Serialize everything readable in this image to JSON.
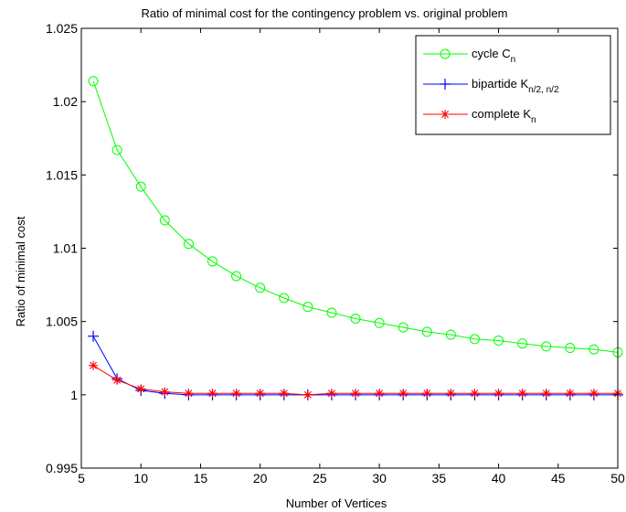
{
  "chart_data": {
    "type": "line",
    "title": "Ratio of minimal cost for the contingency problem vs. original problem",
    "xlabel": "Number of Vertices",
    "ylabel": "Ratio of minimal cost",
    "xlim": [
      5,
      50
    ],
    "ylim": [
      0.995,
      1.025
    ],
    "xticks": [
      5,
      10,
      15,
      20,
      25,
      30,
      35,
      40,
      45,
      50
    ],
    "yticks": [
      0.995,
      1,
      1.005,
      1.01,
      1.015,
      1.02,
      1.025
    ],
    "xtick_labels": [
      "5",
      "10",
      "15",
      "20",
      "25",
      "30",
      "35",
      "40",
      "45",
      "50"
    ],
    "ytick_labels": [
      "0.995",
      "1",
      "1.005",
      "1.01",
      "1.015",
      "1.02",
      "1.025"
    ],
    "grid": false,
    "legend_position": "top-right",
    "series": [
      {
        "name": "cycle C",
        "name_sub": "n",
        "color": "#00ff00",
        "marker": "circle",
        "x": [
          6,
          8,
          10,
          12,
          14,
          16,
          18,
          20,
          22,
          24,
          26,
          28,
          30,
          32,
          34,
          36,
          38,
          40,
          42,
          44,
          46,
          48,
          50
        ],
        "y": [
          1.0214,
          1.0167,
          1.0142,
          1.0119,
          1.0103,
          1.0091,
          1.0081,
          1.0073,
          1.0066,
          1.006,
          1.0056,
          1.0052,
          1.0049,
          1.0046,
          1.0043,
          1.0041,
          1.0038,
          1.0037,
          1.0035,
          1.0033,
          1.0032,
          1.0031,
          1.0029
        ]
      },
      {
        "name": "bipartide K",
        "name_sub": "n/2, n/2",
        "color": "#0000ff",
        "marker": "plus",
        "x": [
          6,
          8,
          10,
          12,
          14,
          16,
          18,
          20,
          22,
          24,
          26,
          28,
          30,
          32,
          34,
          36,
          38,
          40,
          42,
          44,
          46,
          48,
          50
        ],
        "y": [
          1.004,
          1.0011,
          1.0003,
          1.0001,
          1.0,
          1.0,
          1.0,
          1.0,
          1.0,
          1.0,
          1.0,
          1.0,
          1.0,
          1.0,
          1.0,
          1.0,
          1.0,
          1.0,
          1.0,
          1.0,
          1.0,
          1.0,
          1.0
        ]
      },
      {
        "name": "complete K",
        "name_sub": "n",
        "color": "#ff0000",
        "marker": "star",
        "x": [
          6,
          8,
          10,
          12,
          14,
          16,
          18,
          20,
          22,
          24,
          26,
          28,
          30,
          32,
          34,
          36,
          38,
          40,
          42,
          44,
          46,
          48,
          50
        ],
        "y": [
          1.002,
          1.001,
          1.0004,
          1.0002,
          1.0001,
          1.0001,
          1.0001,
          1.0001,
          1.0001,
          1.0,
          1.0001,
          1.0001,
          1.0001,
          1.0001,
          1.0001,
          1.0001,
          1.0001,
          1.0001,
          1.0001,
          1.0001,
          1.0001,
          1.0001,
          1.0001
        ]
      }
    ]
  }
}
